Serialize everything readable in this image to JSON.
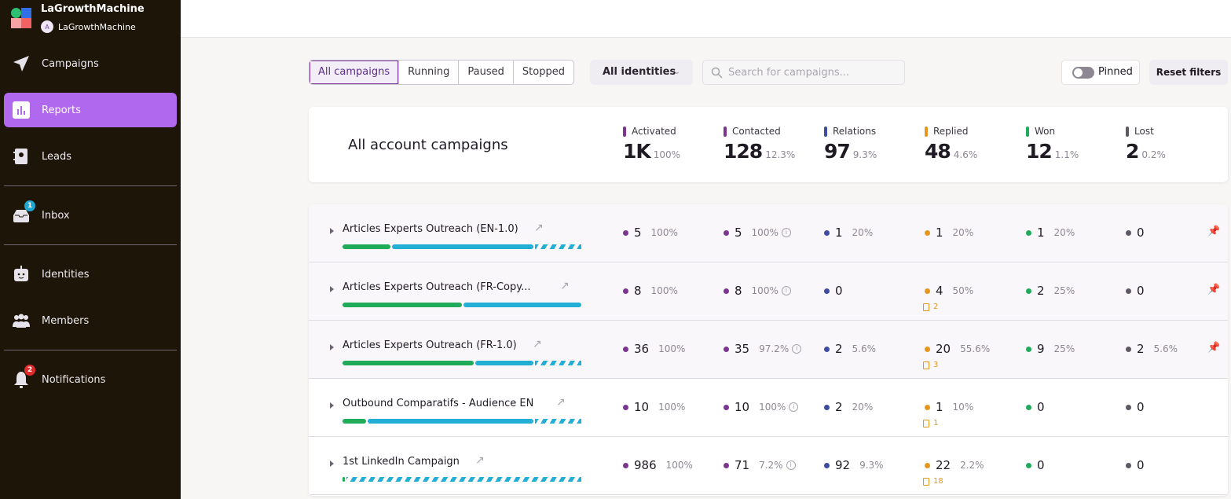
{
  "brand": {
    "name": "LaGrowthMachine",
    "workspace": "LaGrowthMachine",
    "avatar_letter": "A"
  },
  "sidebar": {
    "items": [
      {
        "label": "Campaigns",
        "icon": "paper-plane-icon"
      },
      {
        "label": "Reports",
        "icon": "bar-chart-icon",
        "active": true
      },
      {
        "label": "Leads",
        "icon": "contacts-book-icon"
      },
      {
        "label": "Inbox",
        "icon": "inbox-icon",
        "badge": "1",
        "badge_color": "#1ea7d0"
      },
      {
        "label": "Identities",
        "icon": "robot-icon"
      },
      {
        "label": "Members",
        "icon": "users-icon"
      },
      {
        "label": "Notifications",
        "icon": "bell-icon",
        "badge": "2",
        "badge_color": "#e02b2b"
      }
    ]
  },
  "filters": {
    "status_tabs": [
      "All campaigns",
      "Running",
      "Paused",
      "Stopped"
    ],
    "active_tab": "All campaigns",
    "identities": "All identities",
    "search_placeholder": "Search for campaigns...",
    "search_value": "",
    "pinned_label": "Pinned",
    "pinned_on": false,
    "reset_label": "Reset filters"
  },
  "summary": {
    "title": "All account campaigns",
    "stats": [
      {
        "label": "Activated",
        "value": "1K",
        "pct": "100%",
        "color": "#7b3590"
      },
      {
        "label": "Contacted",
        "value": "128",
        "pct": "12.3%",
        "color": "#7b3590"
      },
      {
        "label": "Relations",
        "value": "97",
        "pct": "9.3%",
        "color": "#3d4c9e"
      },
      {
        "label": "Replied",
        "value": "48",
        "pct": "4.6%",
        "color": "#e5961e"
      },
      {
        "label": "Won",
        "value": "12",
        "pct": "1.1%",
        "color": "#1fab5a"
      },
      {
        "label": "Lost",
        "value": "2",
        "pct": "0.2%",
        "color": "#5d5863"
      }
    ]
  },
  "campaigns": [
    {
      "name": "Articles Experts Outreach (EN-1.0)",
      "pinned": true,
      "progress": {
        "green": 0.2,
        "blue": 0.6,
        "striped": 0.2
      },
      "activated": [
        "5",
        "100%"
      ],
      "contacted": [
        "5",
        "100%"
      ],
      "relations": [
        "1",
        "20%"
      ],
      "replied": [
        "1",
        "20%"
      ],
      "replied_tasks": "",
      "won": [
        "1",
        "20%"
      ],
      "lost": [
        "0",
        ""
      ]
    },
    {
      "name": "Articles Experts Outreach (FR-Copy...",
      "pinned": true,
      "progress": {
        "green": 0.5,
        "blue": 0.5,
        "striped": 0
      },
      "activated": [
        "8",
        "100%"
      ],
      "contacted": [
        "8",
        "100%"
      ],
      "relations": [
        "0",
        ""
      ],
      "replied": [
        "4",
        "50%"
      ],
      "replied_tasks": "2",
      "won": [
        "2",
        "25%"
      ],
      "lost": [
        "0",
        ""
      ]
    },
    {
      "name": "Articles Experts Outreach (FR-1.0)",
      "pinned": true,
      "progress": {
        "green": 0.55,
        "blue": 0.25,
        "striped": 0.2
      },
      "activated": [
        "36",
        "100%"
      ],
      "contacted": [
        "35",
        "97.2%"
      ],
      "relations": [
        "2",
        "5.6%"
      ],
      "replied": [
        "20",
        "55.6%"
      ],
      "replied_tasks": "3",
      "won": [
        "9",
        "25%"
      ],
      "lost": [
        "2",
        "5.6%"
      ]
    },
    {
      "name": "Outbound Comparatifs - Audience EN",
      "pinned": false,
      "progress": {
        "green": 0.1,
        "blue": 0.7,
        "striped": 0.2
      },
      "activated": [
        "10",
        "100%"
      ],
      "contacted": [
        "10",
        "100%"
      ],
      "relations": [
        "2",
        "20%"
      ],
      "replied": [
        "1",
        "10%"
      ],
      "replied_tasks": "1",
      "won": [
        "0",
        ""
      ],
      "lost": [
        "0",
        ""
      ]
    },
    {
      "name": "1st LinkedIn Campaign",
      "pinned": false,
      "progress": {
        "green": 0.01,
        "blue": 0,
        "striped": 0.99
      },
      "activated": [
        "986",
        "100%"
      ],
      "contacted": [
        "71",
        "7.2%"
      ],
      "relations": [
        "92",
        "9.3%"
      ],
      "replied": [
        "22",
        "2.2%"
      ],
      "replied_tasks": "18",
      "won": [
        "0",
        ""
      ],
      "lost": [
        "0",
        ""
      ]
    }
  ]
}
